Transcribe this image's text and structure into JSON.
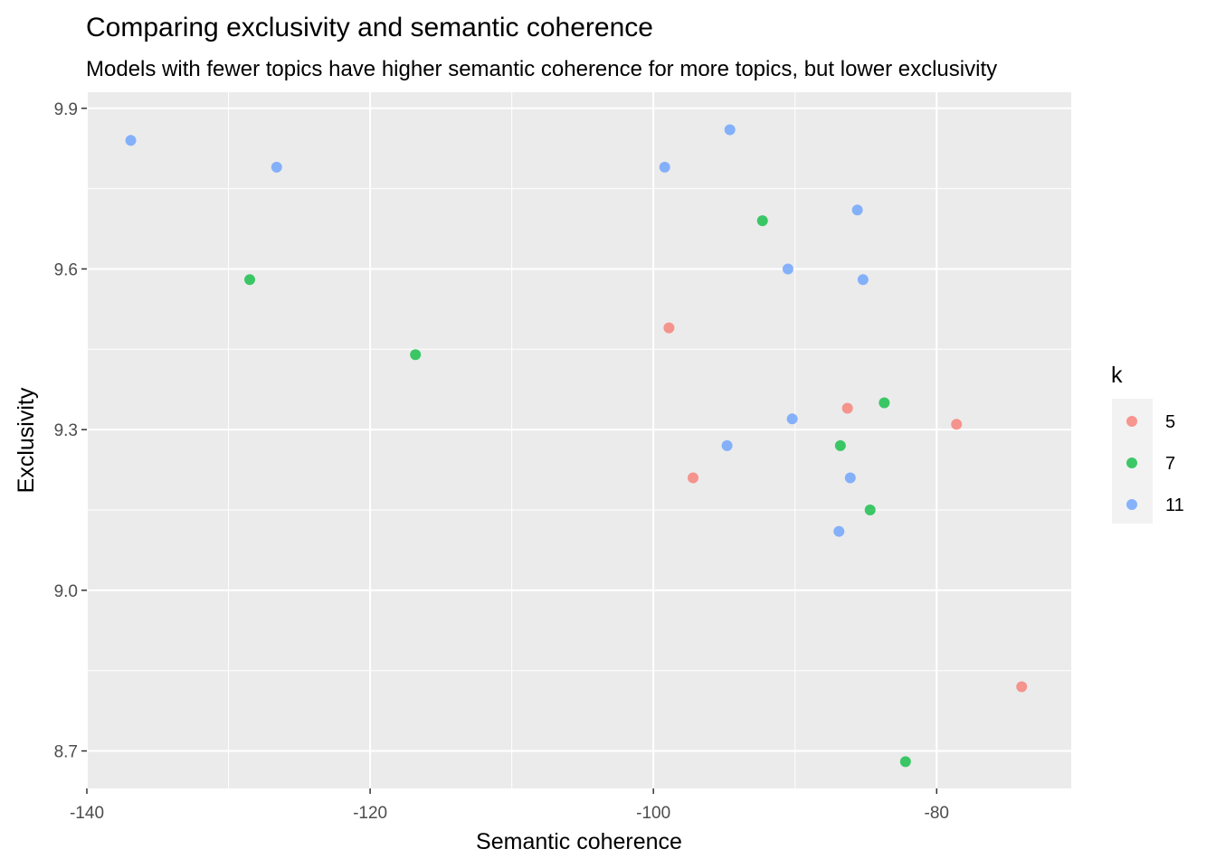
{
  "chart_data": {
    "type": "scatter",
    "title": "Comparing exclusivity and semantic coherence",
    "subtitle": "Models with fewer topics have higher semantic coherence for more topics, but lower exclusivity",
    "xlabel": "Semantic coherence",
    "ylabel": "Exclusivity",
    "xlim": [
      -140,
      -70.5
    ],
    "ylim": [
      8.63,
      9.93
    ],
    "x_ticks": [
      -140,
      -120,
      -100,
      -80
    ],
    "x_tick_labels": [
      "-140",
      "-120",
      "-100",
      "-80"
    ],
    "x_minor_ticks": [
      -130,
      -110,
      -90,
      -70
    ],
    "y_ticks": [
      8.7,
      9.0,
      9.3,
      9.6,
      9.9
    ],
    "y_tick_labels": [
      "8.7",
      "9.0",
      "9.3",
      "9.6",
      "9.9"
    ],
    "y_minor_ticks": [
      8.85,
      9.15,
      9.45,
      9.75
    ],
    "grid": true,
    "legend": {
      "title": "k",
      "position": "right"
    },
    "series": [
      {
        "name": "5",
        "color": "#F8766D",
        "points": [
          {
            "x": -98.9,
            "y": 9.49
          },
          {
            "x": -86.3,
            "y": 9.34
          },
          {
            "x": -97.2,
            "y": 9.21
          },
          {
            "x": -78.6,
            "y": 9.31
          },
          {
            "x": -74.0,
            "y": 8.82
          }
        ]
      },
      {
        "name": "7",
        "color": "#00BA38",
        "points": [
          {
            "x": -128.5,
            "y": 9.58
          },
          {
            "x": -116.8,
            "y": 9.44
          },
          {
            "x": -92.3,
            "y": 9.69
          },
          {
            "x": -83.7,
            "y": 9.35
          },
          {
            "x": -86.8,
            "y": 9.27
          },
          {
            "x": -84.7,
            "y": 9.15
          },
          {
            "x": -82.2,
            "y": 8.68
          }
        ]
      },
      {
        "name": "11",
        "color": "#619CFF",
        "points": [
          {
            "x": -136.9,
            "y": 9.84
          },
          {
            "x": -126.6,
            "y": 9.79
          },
          {
            "x": -94.6,
            "y": 9.86
          },
          {
            "x": -99.2,
            "y": 9.79
          },
          {
            "x": -85.6,
            "y": 9.71
          },
          {
            "x": -90.5,
            "y": 9.6
          },
          {
            "x": -85.2,
            "y": 9.58
          },
          {
            "x": -90.2,
            "y": 9.32
          },
          {
            "x": -94.8,
            "y": 9.27
          },
          {
            "x": -86.1,
            "y": 9.21
          },
          {
            "x": -86.9,
            "y": 9.11
          }
        ]
      }
    ]
  }
}
